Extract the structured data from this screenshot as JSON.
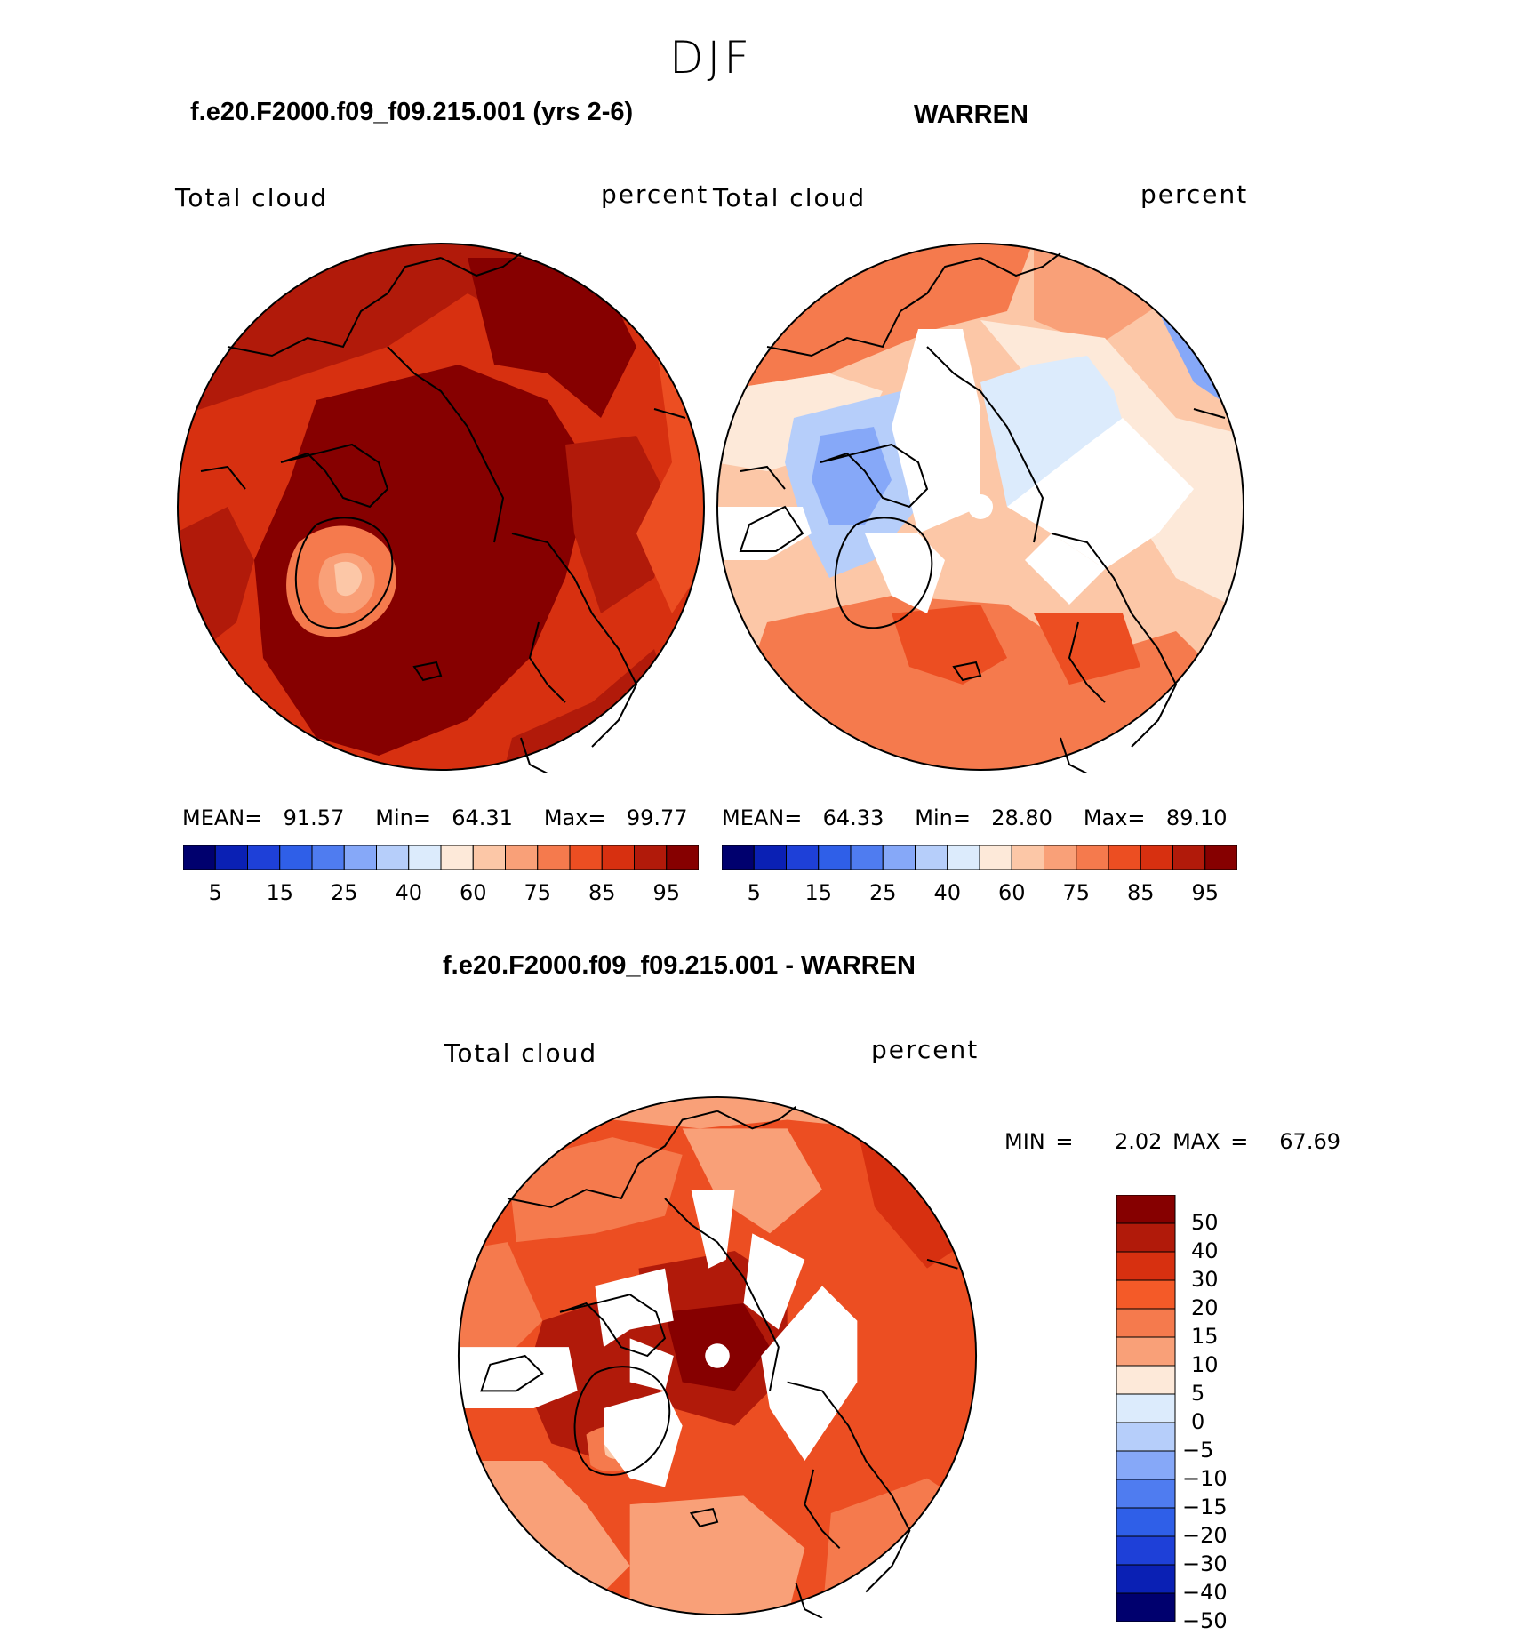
{
  "figure": {
    "season": "DJF",
    "case_title": "f.e20.F2000.f09_f09.215.001 (yrs 2-6)",
    "obs_title": "WARREN",
    "diff_title": "f.e20.F2000.f09_f09.215.001 - WARREN"
  },
  "panels": {
    "model": {
      "variable": "Total cloud",
      "units": "percent",
      "mean_label": "MEAN=",
      "mean": "91.57",
      "min_label": "Min=",
      "min": "64.31",
      "max_label": "Max=",
      "max": "99.77"
    },
    "obs": {
      "variable": "Total cloud",
      "units": "percent",
      "mean_label": "MEAN=",
      "mean": "64.33",
      "min_label": "Min=",
      "min": "28.80",
      "max_label": "Max=",
      "max": "89.10"
    },
    "diff": {
      "variable": "Total cloud",
      "units": "percent",
      "min_label": "MIN =",
      "min": "2.02",
      "max_label": "MAX =",
      "max": "67.69"
    }
  },
  "colorbar_main": {
    "colors": [
      "#00006e",
      "#0a20b4",
      "#1e40d8",
      "#2f5fe8",
      "#4f7cf0",
      "#86a8f8",
      "#b6cefa",
      "#dcebfc",
      "#fde9d9",
      "#fcc7a7",
      "#f9a078",
      "#f57a4d",
      "#ec4e22",
      "#d73010",
      "#b11a0a",
      "#860000"
    ],
    "tick_labels": [
      "5",
      "15",
      "25",
      "40",
      "60",
      "75",
      "85",
      "95"
    ]
  },
  "colorbar_diff": {
    "colors": [
      "#860000",
      "#b11a0a",
      "#d73010",
      "#f45a28",
      "#f57a4d",
      "#f9a078",
      "#fde9d9",
      "#dcebfc",
      "#b6cefa",
      "#86a8f8",
      "#4f7cf0",
      "#2f5fe8",
      "#1e40d8",
      "#0a20b4",
      "#00006e"
    ],
    "tick_labels": [
      "50",
      "40",
      "30",
      "20",
      "15",
      "10",
      "5",
      "0",
      "−5",
      "−10",
      "−15",
      "−20",
      "−30",
      "−40",
      "−50"
    ]
  }
}
